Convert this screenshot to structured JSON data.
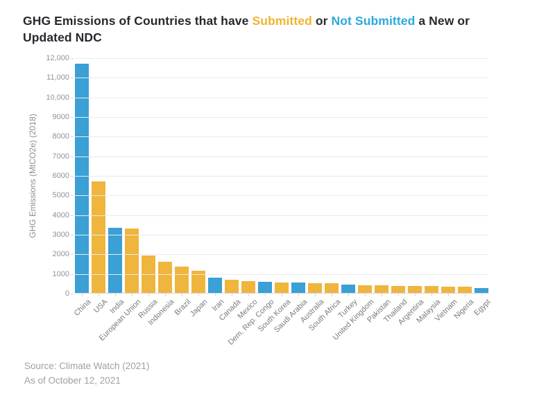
{
  "title": {
    "segments": [
      {
        "text": "GHG Emissions of Countries that have ",
        "color": "#26292e"
      },
      {
        "text": "Submitted",
        "color": "#efb42f"
      },
      {
        "text": " or ",
        "color": "#26292e"
      },
      {
        "text": "Not Submitted",
        "color": "#2ba9df"
      },
      {
        "text": " a New or\nUpdated NDC",
        "color": "#26292e"
      }
    ]
  },
  "chart_data": {
    "type": "bar",
    "title": "GHG Emissions of Countries that have Submitted or Not Submitted a New or Updated NDC",
    "xlabel": "",
    "ylabel": "GHG Emissions (MtCO2e) (2018)",
    "ylim": [
      0,
      12000
    ],
    "grid": true,
    "legend": {
      "position": "encoded-in-title",
      "submitted_label": "Submitted",
      "not_submitted_label": "Not Submitted"
    },
    "colors": {
      "submitted": "#efb53d",
      "not_submitted": "#3aa0d5"
    },
    "y_ticks": [
      {
        "label": "12,000",
        "value": 12000
      },
      {
        "label": "11,000",
        "value": 11000
      },
      {
        "label": "10,000",
        "value": 10000
      },
      {
        "label": "9000",
        "value": 9000
      },
      {
        "label": "8000",
        "value": 8000
      },
      {
        "label": "7000",
        "value": 7000
      },
      {
        "label": "6000",
        "value": 6000
      },
      {
        "label": "5000",
        "value": 5000
      },
      {
        "label": "4000",
        "value": 4000
      },
      {
        "label": "3000",
        "value": 3000
      },
      {
        "label": "2000",
        "value": 2000
      },
      {
        "label": "1000",
        "value": 1000
      },
      {
        "label": "0",
        "value": 0
      }
    ],
    "points": [
      {
        "country": "China",
        "value": 11700,
        "status": "not_submitted"
      },
      {
        "country": "USA",
        "value": 5700,
        "status": "submitted"
      },
      {
        "country": "India",
        "value": 3330,
        "status": "not_submitted"
      },
      {
        "country": "European Union",
        "value": 3290,
        "status": "submitted"
      },
      {
        "country": "Russia",
        "value": 1900,
        "status": "submitted"
      },
      {
        "country": "Indonesia",
        "value": 1600,
        "status": "submitted"
      },
      {
        "country": "Brazil",
        "value": 1330,
        "status": "submitted"
      },
      {
        "country": "Japan",
        "value": 1130,
        "status": "submitted"
      },
      {
        "country": "Iran",
        "value": 780,
        "status": "not_submitted"
      },
      {
        "country": "Canada",
        "value": 680,
        "status": "submitted"
      },
      {
        "country": "Mexico",
        "value": 600,
        "status": "submitted"
      },
      {
        "country": "Dem. Rep. Congo",
        "value": 560,
        "status": "not_submitted"
      },
      {
        "country": "South Korea",
        "value": 530,
        "status": "submitted"
      },
      {
        "country": "Saudi Arabia",
        "value": 520,
        "status": "not_submitted"
      },
      {
        "country": "Australia",
        "value": 510,
        "status": "submitted"
      },
      {
        "country": "South Africa",
        "value": 490,
        "status": "submitted"
      },
      {
        "country": "Turkey",
        "value": 430,
        "status": "not_submitted"
      },
      {
        "country": "United Kingdom",
        "value": 400,
        "status": "submitted"
      },
      {
        "country": "Pakistan",
        "value": 380,
        "status": "submitted"
      },
      {
        "country": "Thailand",
        "value": 370,
        "status": "submitted"
      },
      {
        "country": "Argentina",
        "value": 360,
        "status": "submitted"
      },
      {
        "country": "Malaysia",
        "value": 340,
        "status": "submitted"
      },
      {
        "country": "Vietnam",
        "value": 330,
        "status": "submitted"
      },
      {
        "country": "Nigeria",
        "value": 310,
        "status": "submitted"
      },
      {
        "country": "Egypt",
        "value": 260,
        "status": "not_submitted"
      }
    ]
  },
  "footer": {
    "source": "Source: Climate Watch (2021)",
    "as_of": "As of October 12, 2021"
  }
}
